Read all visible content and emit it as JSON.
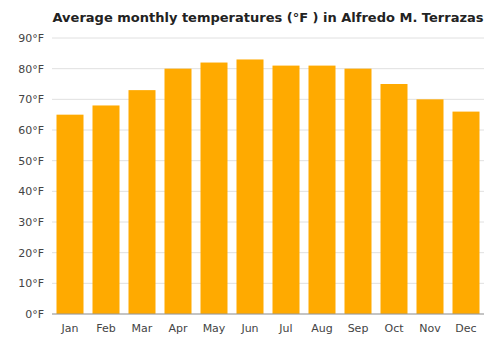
{
  "chart_data": {
    "type": "bar",
    "title": "Average monthly temperatures (°F ) in Alfredo M. Terrazas",
    "categories": [
      "Jan",
      "Feb",
      "Mar",
      "Apr",
      "May",
      "Jun",
      "Jul",
      "Aug",
      "Sep",
      "Oct",
      "Nov",
      "Dec"
    ],
    "values": [
      65,
      68,
      73,
      80,
      82,
      83,
      81,
      81,
      80,
      75,
      70,
      66
    ],
    "color": "#FFAA00",
    "ylim": [
      0,
      90
    ],
    "yticks": [
      {
        "value": 0,
        "label": "0°F"
      },
      {
        "value": 10,
        "label": "10°F"
      },
      {
        "value": 20,
        "label": "20°F"
      },
      {
        "value": 30,
        "label": "30°F"
      },
      {
        "value": 40,
        "label": "40°F"
      },
      {
        "value": 50,
        "label": "50°F"
      },
      {
        "value": 60,
        "label": "60°F"
      },
      {
        "value": 70,
        "label": "70°F"
      },
      {
        "value": 80,
        "label": "80°F"
      },
      {
        "value": 90,
        "label": "90°F"
      }
    ],
    "grid": true
  }
}
